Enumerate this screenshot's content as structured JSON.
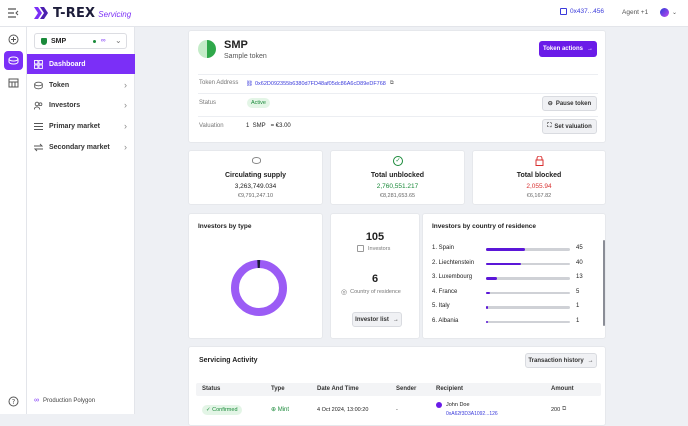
{
  "header": {
    "logo_text": "T-REX",
    "logo_sub": "Servicing",
    "wallet_address": "0x437...456",
    "agent_label": "Agent +1"
  },
  "token_selector": {
    "symbol": "SMP"
  },
  "sidebar": {
    "items": [
      {
        "label": "Dashboard",
        "icon": "grid-icon"
      },
      {
        "label": "Token",
        "icon": "token-icon"
      },
      {
        "label": "Investors",
        "icon": "users-icon"
      },
      {
        "label": "Primary market",
        "icon": "list-icon"
      },
      {
        "label": "Secondary market",
        "icon": "swap-icon"
      }
    ],
    "footer": "Production Polygon"
  },
  "token": {
    "symbol": "SMP",
    "name": "Sample token",
    "actions_label": "Token actions",
    "address_label": "Token Address",
    "address": "0x62D092355b6380d7FD48af05dc86A6cD89eDF768",
    "status_label": "Status",
    "status": "Active",
    "pause_label": "Pause token",
    "valuation_label": "Valuation",
    "valuation_value": "1  SMP   = €3.00",
    "set_valuation_label": "Set valuation"
  },
  "stats": [
    {
      "title": "Circulating supply",
      "value": "3,263,749.034",
      "sub": "€9,791,247.10",
      "color": "#222222"
    },
    {
      "title": "Total unblocked",
      "value": "2,760,551.217",
      "sub": "€8,281,653.65",
      "color": "#1a8a3a"
    },
    {
      "title": "Total blocked",
      "value": "2,055.94",
      "sub": "€6,167.82",
      "color": "#d93030"
    }
  ],
  "investors_type": {
    "title": "Investors by type"
  },
  "investors_summary": {
    "count": "105",
    "count_label": "Investors",
    "countries": "6",
    "countries_label": "Country of residence",
    "list_label": "Investor list"
  },
  "countries": {
    "title": "Investors by country of residence",
    "rows": [
      {
        "label": "1. Spain",
        "count": "45",
        "value": 45
      },
      {
        "label": "2. Liechtenstein",
        "count": "40",
        "value": 40
      },
      {
        "label": "3. Luxembourg",
        "count": "13",
        "value": 13
      },
      {
        "label": "4. France",
        "count": "5",
        "value": 5
      },
      {
        "label": "5. Italy",
        "count": "1",
        "value": 1
      },
      {
        "label": "6. Albania",
        "count": "1",
        "value": 1
      }
    ]
  },
  "activity": {
    "title": "Servicing Activity",
    "history_label": "Transaction history",
    "columns": [
      "Status",
      "Type",
      "Date And Time",
      "Sender",
      "Recipient",
      "Amount"
    ],
    "rows": [
      {
        "status": "Confirmed",
        "type": "Mint",
        "datetime": "4 Oct 2024, 13:00:20",
        "sender": "-",
        "recipient_name": "John Doe",
        "recipient_addr": "0xA62f3D3A1092...126",
        "amount": "200"
      }
    ]
  }
}
